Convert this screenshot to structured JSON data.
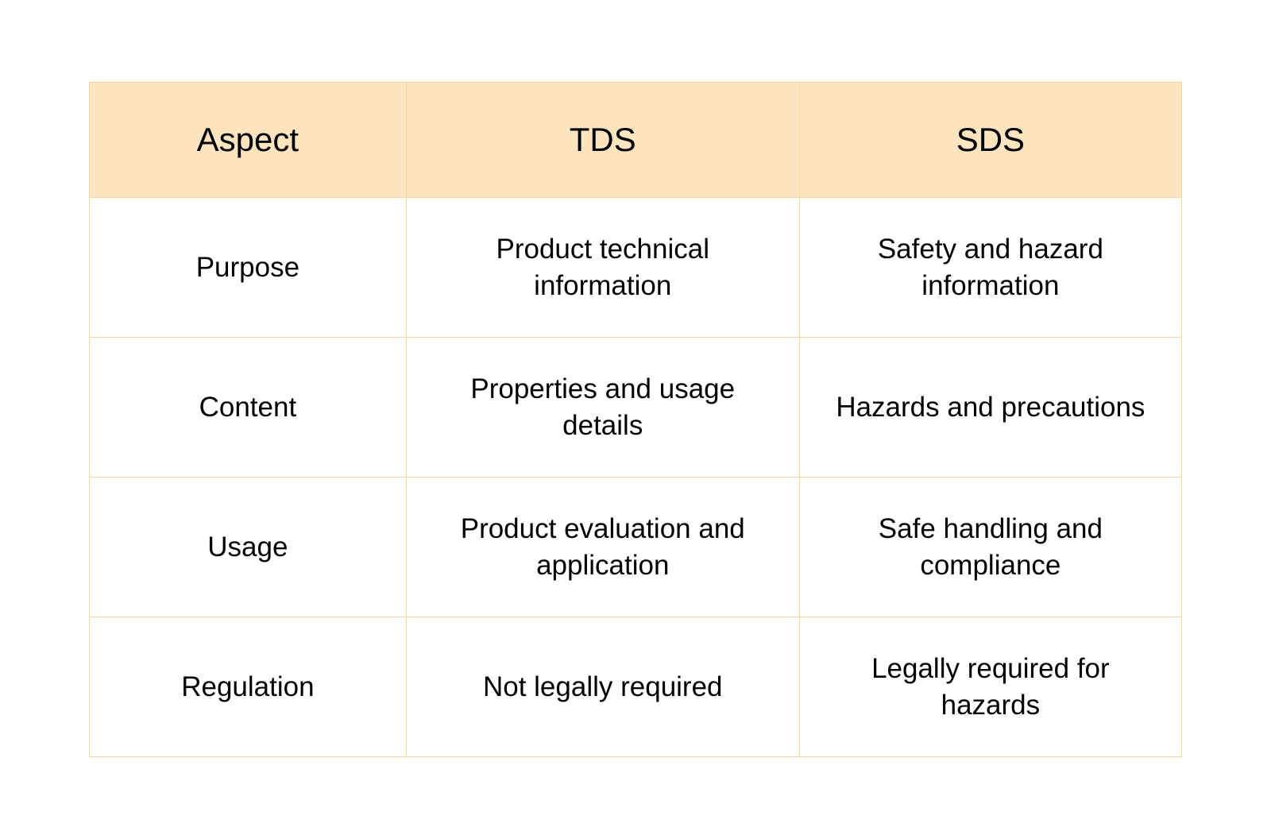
{
  "table": {
    "type": "table",
    "columns": [
      "Aspect",
      "TDS",
      "SDS"
    ],
    "rows": [
      [
        "Purpose",
        "Product technical information",
        "Safety and hazard information"
      ],
      [
        "Content",
        "Properties and usage details",
        "Hazards and precautions"
      ],
      [
        "Usage",
        "Product evaluation and application",
        "Safe handling and compliance"
      ],
      [
        "Regulation",
        "Not legally required",
        "Legally required for hazards"
      ]
    ],
    "header_background_color": "#fce4be",
    "cell_background_color": "#ffffff",
    "border_color": "#f5d69a",
    "text_color": "#000000",
    "header_fontsize": 42,
    "cell_fontsize": 35,
    "column_widths": [
      "29%",
      "36%",
      "35%"
    ]
  }
}
